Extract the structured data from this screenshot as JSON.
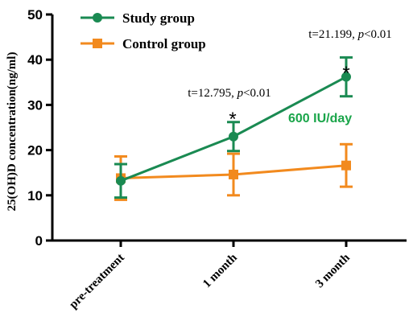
{
  "chart_data": {
    "type": "line",
    "categories": [
      "pre-treatment",
      "1 month",
      "3 month"
    ],
    "ylabel": "25(OH)D concentration(ng/ml)",
    "ylim": [
      0,
      50
    ],
    "yticks": [
      0,
      10,
      20,
      30,
      40,
      50
    ],
    "grid": false,
    "legend": "top-left",
    "series": [
      {
        "name": "Study group",
        "color": "#1a8a52",
        "marker": "circle",
        "values": [
          13.2,
          23.0,
          36.2
        ],
        "error": [
          3.7,
          3.2,
          4.3
        ]
      },
      {
        "name": "Control group",
        "color": "#f28a1e",
        "marker": "square",
        "values": [
          13.8,
          14.6,
          16.6
        ],
        "error": [
          4.8,
          4.6,
          4.7
        ]
      }
    ],
    "annotations": [
      {
        "category": "1 month",
        "star": "*",
        "t_prefix": "t=12.795, ",
        "p_symbol": "p",
        "p_suffix": "<0.01"
      },
      {
        "category": "3 month",
        "star": "*",
        "t_prefix": "t=21.199, ",
        "p_symbol": "p",
        "p_suffix": "<0.01"
      }
    ],
    "dose_label": "600 IU/day",
    "dose_color": "#1aa54a"
  }
}
